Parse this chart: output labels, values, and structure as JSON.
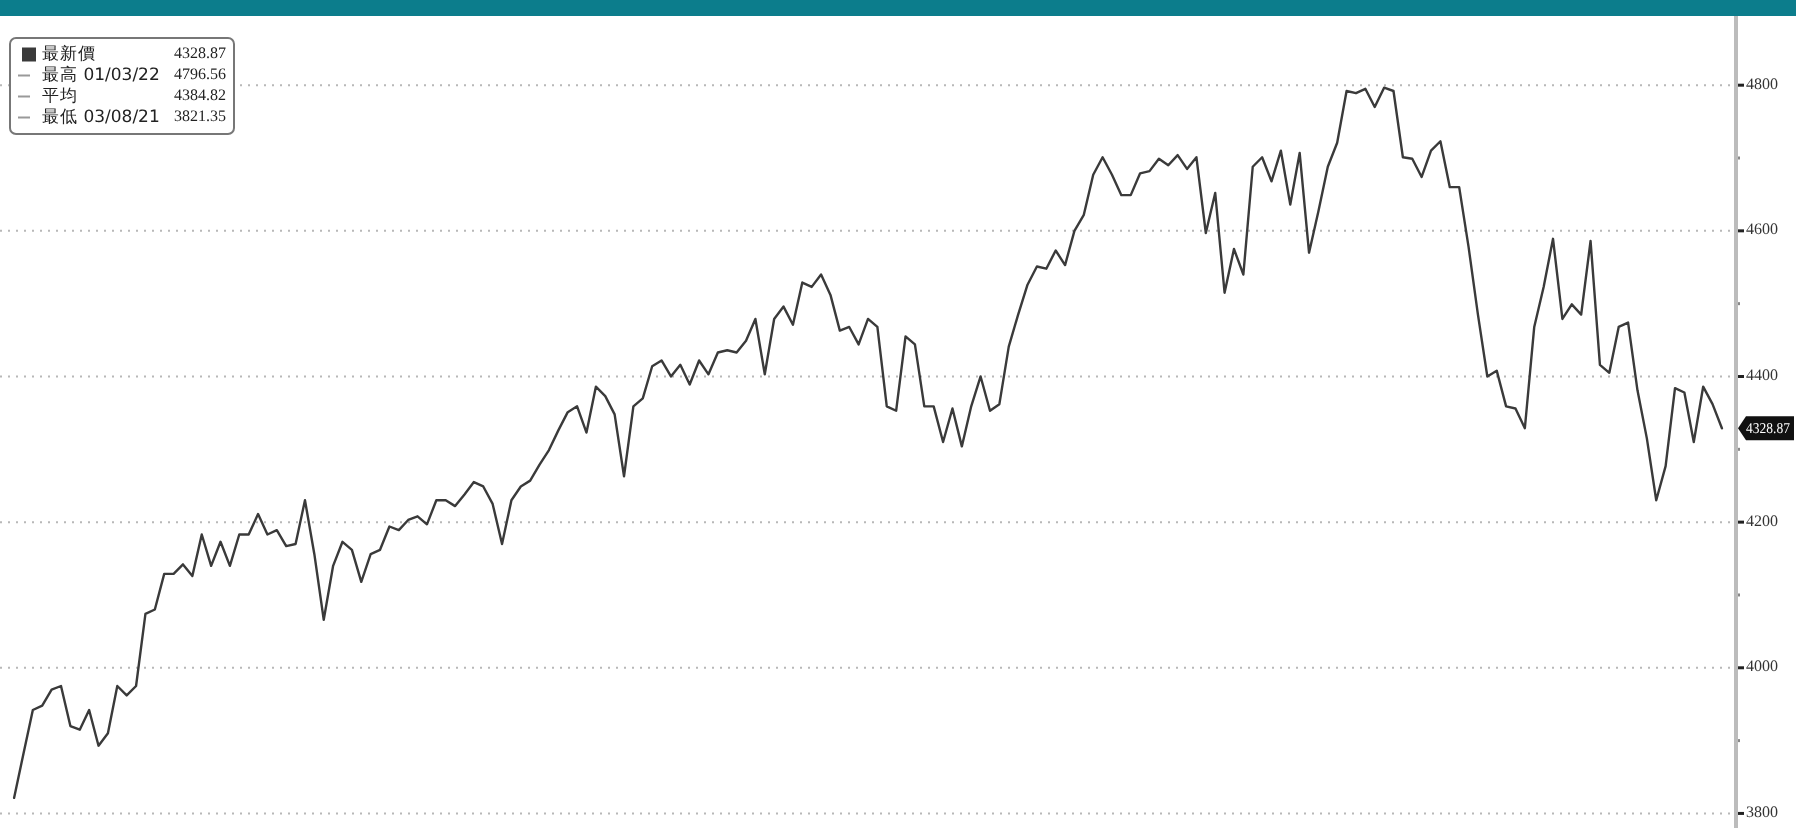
{
  "chart_data": {
    "type": "line",
    "categories": [
      null,
      null,
      null,
      null,
      null,
      null,
      null,
      null,
      null,
      null,
      null,
      null,
      null,
      null,
      null,
      null,
      null,
      null,
      null,
      null,
      null,
      null,
      null,
      null,
      null,
      null,
      null,
      null,
      null,
      null,
      null,
      null,
      null,
      null,
      null,
      null,
      null,
      null,
      null,
      null,
      null,
      null,
      null,
      null,
      null,
      null,
      null,
      null,
      null,
      null,
      null,
      null,
      null,
      null,
      null,
      null,
      null,
      null,
      null,
      null,
      null,
      null,
      null,
      null,
      null,
      null,
      null,
      null,
      null,
      null,
      null,
      null,
      null,
      null,
      null,
      null,
      null,
      null,
      null,
      null,
      null,
      null,
      null,
      null,
      null,
      null,
      null,
      null,
      null,
      null,
      null,
      null,
      null,
      null,
      null,
      null,
      null,
      null,
      null,
      null,
      null,
      null,
      null,
      null,
      null,
      null,
      null,
      null,
      null,
      null,
      null,
      null,
      null,
      null,
      null,
      null,
      null,
      null,
      null,
      null,
      null,
      null,
      null,
      null,
      null,
      null,
      null,
      null,
      null,
      null,
      null,
      null,
      null,
      null,
      null,
      null,
      null,
      null,
      null,
      null,
      null,
      null,
      null,
      null,
      null,
      null,
      null,
      null,
      null,
      null,
      null,
      null,
      null,
      null,
      null,
      null,
      null,
      null,
      null,
      null,
      null,
      null,
      null,
      null,
      null,
      null,
      null,
      null,
      null,
      null,
      null,
      null,
      null,
      null,
      null,
      null,
      null,
      null,
      null,
      null,
      null,
      null,
      null
    ],
    "series": [
      {
        "name": "最新價",
        "color": "#3a3a3a",
        "values": [
          3821.35,
          3882,
          3942,
          3948,
          3970,
          3975,
          3920,
          3915,
          3942,
          3893,
          3910,
          3975,
          3962,
          3975,
          4074,
          4080,
          4129,
          4129,
          4142,
          4126,
          4183,
          4140,
          4173,
          4140,
          4183,
          4183,
          4211,
          4183,
          4189,
          4167,
          4170,
          4230,
          4156,
          4066,
          4140,
          4173,
          4162,
          4118,
          4156,
          4162,
          4194,
          4189,
          4203,
          4208,
          4197,
          4230,
          4230,
          4222,
          4238,
          4255,
          4249,
          4225,
          4170,
          4230,
          4249,
          4257,
          4279,
          4299,
          4326,
          4351,
          4359,
          4323,
          4386,
          4373,
          4348,
          4263,
          4359,
          4370,
          4414,
          4422,
          4400,
          4416,
          4389,
          4422,
          4403,
          4433,
          4436,
          4433,
          4449,
          4479,
          4403,
          4479,
          4496,
          4471,
          4529,
          4523,
          4540,
          4512,
          4463,
          4468,
          4444,
          4479,
          4468,
          4359,
          4353,
          4455,
          4444,
          4359,
          4359,
          4310,
          4356,
          4304,
          4359,
          4400,
          4353,
          4362,
          4441,
          4485,
          4526,
          4551,
          4548,
          4573,
          4553,
          4600,
          4622,
          4677,
          4701,
          4677,
          4649,
          4649,
          4679,
          4682,
          4699,
          4690,
          4704,
          4685,
          4701,
          4597,
          4652,
          4515,
          4575,
          4540,
          4688,
          4701,
          4668,
          4710,
          4636,
          4707,
          4570,
          4627,
          4688,
          4721,
          4792,
          4789,
          4795,
          4770,
          4796.56,
          4792,
          4701,
          4699,
          4674,
          4710,
          4723,
          4660,
          4660,
          4578,
          4485,
          4400,
          4408,
          4359,
          4356,
          4329,
          4468,
          4523,
          4589,
          4479,
          4499,
          4485,
          4586,
          4416,
          4405,
          4468,
          4474,
          4381,
          4315,
          4230,
          4277,
          4384,
          4378,
          4310,
          4386,
          4362,
          4328.87
        ]
      }
    ],
    "ylim": [
      3780,
      4895
    ],
    "yticks": [
      3800,
      {
        "value": 3900,
        "label": null
      },
      4000,
      {
        "value": 4100,
        "label": null
      },
      4200,
      {
        "value": 4300,
        "label": null
      },
      4400,
      {
        "value": 4500,
        "label": null
      },
      4600,
      {
        "value": 4700,
        "label": null
      },
      4800
    ],
    "grid": "y",
    "legend": "top left",
    "annotations": [
      "4328.87",
      "最高 01/03/22 4796.56",
      "平均 4384.82",
      "最低 03/08/21 3821.35"
    ]
  }
}
